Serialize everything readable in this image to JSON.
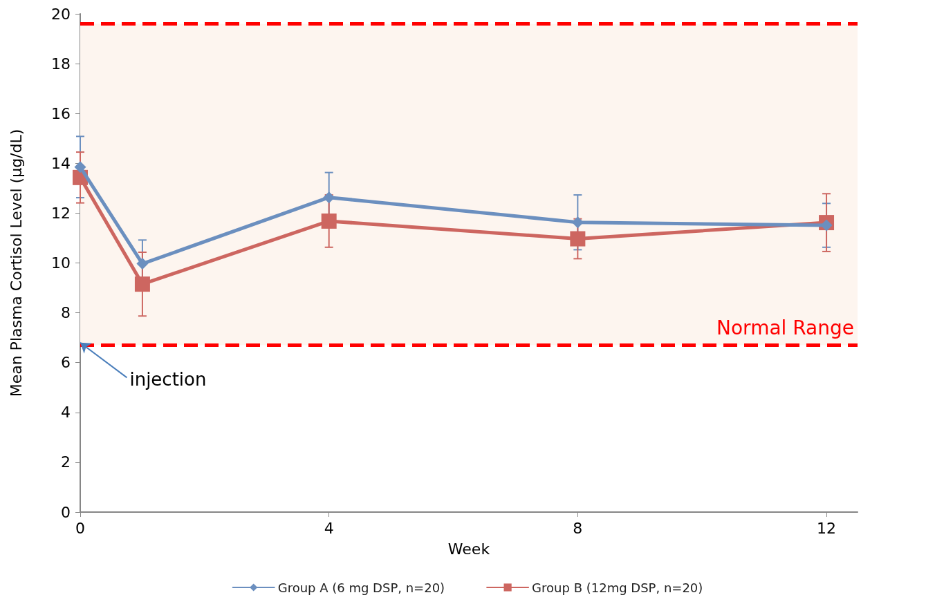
{
  "chart_data": {
    "type": "line",
    "xlabel": "Week",
    "ylabel": "Mean Plasma Cortisol Level (µg/dL)",
    "x": [
      0,
      1,
      4,
      8,
      12
    ],
    "series": [
      {
        "name": "Group A (6 mg DSP, n=20)",
        "color": "#6b8fbf",
        "marker": "diamond",
        "values": [
          13.85,
          9.97,
          12.63,
          11.63,
          11.51
        ],
        "errors": [
          1.23,
          0.95,
          1.0,
          1.1,
          0.88
        ]
      },
      {
        "name": "Group B (12mg DSP, n=20)",
        "color": "#cd6660",
        "marker": "square",
        "values": [
          13.43,
          9.15,
          11.68,
          10.97,
          11.62
        ],
        "errors": [
          1.02,
          1.28,
          1.05,
          0.8,
          1.16
        ]
      }
    ],
    "xlim": [
      0,
      12.5
    ],
    "xticks": [
      0,
      4,
      8,
      12
    ],
    "ylim": [
      0,
      20
    ],
    "yticks": [
      0,
      2,
      4,
      6,
      8,
      10,
      12,
      14,
      16,
      18,
      20
    ],
    "ref_lines": [
      {
        "axis": "y",
        "value": 19.6,
        "color": "#ff0000",
        "line_style": "dashed"
      },
      {
        "axis": "y",
        "value": 6.7,
        "color": "#ff0000",
        "line_style": "dashed"
      }
    ],
    "bands": [
      {
        "axis": "y",
        "from": 6.7,
        "to": 19.6,
        "label": "Normal Range",
        "color": "#fdf5ef"
      }
    ],
    "annotations": [
      {
        "text": "injection",
        "x": 0,
        "y": 6.8
      }
    ],
    "grid": false,
    "legend": "bottom",
    "line_style": "solid"
  }
}
